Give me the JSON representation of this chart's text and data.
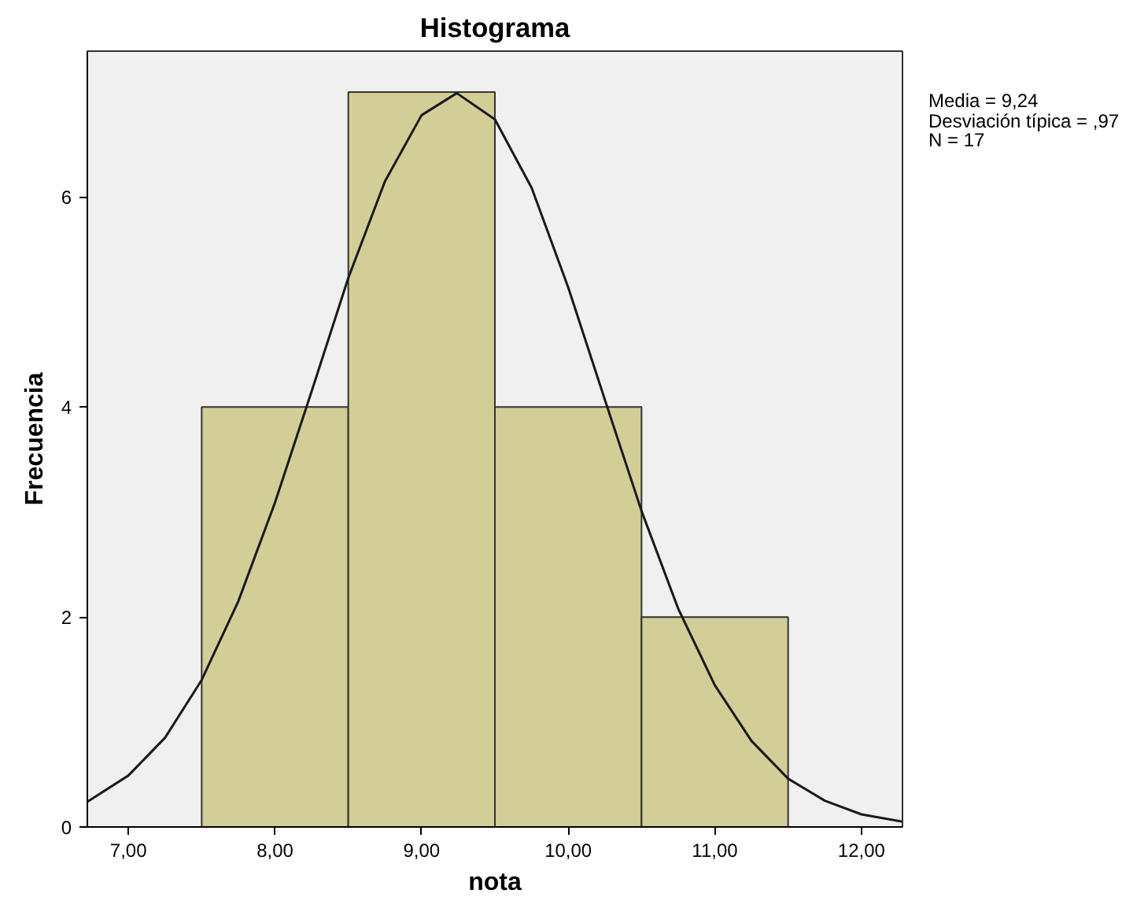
{
  "chart_data": {
    "type": "histogram",
    "title": "Histograma",
    "xlabel": "nota",
    "ylabel": "Frecuencia",
    "bins": [
      7.5,
      8.5,
      9.5,
      10.5,
      11.5
    ],
    "values": [
      4,
      7,
      4,
      2
    ],
    "color": "#d3ce97",
    "series": [
      {
        "type": "line",
        "color": "#1a1a1a",
        "x": [
          6.72,
          7.0,
          7.25,
          7.5,
          7.75,
          8.0,
          8.25,
          8.5,
          8.75,
          9.0,
          9.24,
          9.5,
          9.75,
          10.0,
          10.25,
          10.5,
          10.75,
          11.0,
          11.25,
          11.5,
          11.75,
          12.0,
          12.28
        ],
        "values": [
          0.24,
          0.49,
          0.85,
          1.4,
          2.15,
          3.09,
          4.15,
          5.23,
          6.15,
          6.78,
          6.99,
          6.74,
          6.09,
          5.14,
          4.07,
          3.01,
          2.08,
          1.35,
          0.82,
          0.46,
          0.25,
          0.12,
          0.05
        ]
      }
    ],
    "xlim": [
      6.72,
      12.28
    ],
    "ylim": [
      0,
      7.39
    ],
    "xticks": [
      {
        "value": 7,
        "label": "7,00"
      },
      {
        "value": 8,
        "label": "8,00"
      },
      {
        "value": 9,
        "label": "9,00"
      },
      {
        "value": 10,
        "label": "10,00"
      },
      {
        "value": 11,
        "label": "11,00"
      },
      {
        "value": 12,
        "label": "12,00"
      }
    ],
    "yticks": [
      0,
      2,
      4,
      6
    ],
    "annotations": [
      "Media = 9,24",
      "Desviación típica = ,97",
      "N = 17"
    ],
    "grid": false,
    "marker": "none",
    "line_style": "solid"
  }
}
